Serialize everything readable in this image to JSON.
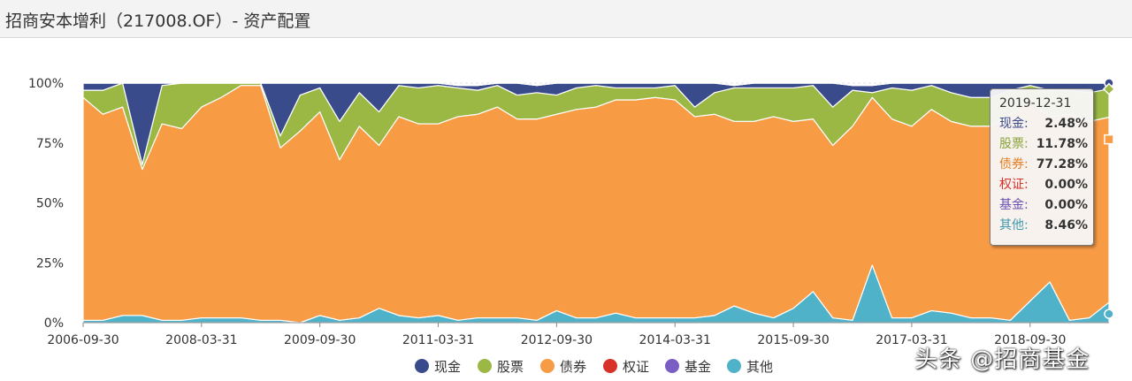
{
  "page": {
    "title": "招商安本增利（217008.OF）- 资产配置",
    "watermark": "头条 @招商基金"
  },
  "colors": {
    "现金": "#3a4b8c",
    "股票": "#9bb845",
    "债券": "#f79b45",
    "权证": "#d8312a",
    "基金": "#7b5ec3",
    "其他": "#4fb2c8"
  },
  "tooltip": {
    "date": "2019-12-31",
    "rows": [
      {
        "label": "现金:",
        "value": "2.48%"
      },
      {
        "label": "股票:",
        "value": "11.78%"
      },
      {
        "label": "债券:",
        "value": "77.28%"
      },
      {
        "label": "权证:",
        "value": "0.00%"
      },
      {
        "label": "基金:",
        "value": "0.00%"
      },
      {
        "label": "其他:",
        "value": "8.46%"
      }
    ]
  },
  "chart_data": {
    "type": "area",
    "stacked": true,
    "title": "招商安本增利（217008.OF）- 资产配置",
    "ylim": [
      0,
      100
    ],
    "yticks": [
      "0%",
      "25%",
      "50%",
      "75%",
      "100%"
    ],
    "xtick_labels": [
      "2006-09-30",
      "2008-03-31",
      "2009-09-30",
      "2011-03-31",
      "2012-09-30",
      "2014-03-31",
      "2015-09-30",
      "2017-03-31",
      "2018-09-30"
    ],
    "xtick_positions": [
      0,
      6,
      12,
      18,
      24,
      30,
      36,
      42,
      48
    ],
    "legend": [
      "现金",
      "股票",
      "债券",
      "权证",
      "基金",
      "其他"
    ],
    "legend_position": "bottom",
    "series": [
      {
        "name": "其他",
        "values": [
          1,
          1,
          3,
          3,
          1,
          1,
          2,
          2,
          2,
          1,
          1,
          0,
          3,
          1,
          2,
          6,
          3,
          2,
          3,
          1,
          2,
          2,
          2,
          1,
          5,
          2,
          2,
          4,
          2,
          2,
          2,
          2,
          3,
          7,
          4,
          2,
          6,
          13,
          2,
          1,
          24,
          2,
          2,
          5,
          4,
          2,
          2,
          1,
          9,
          17,
          1,
          2,
          8.46
        ]
      },
      {
        "name": "债券",
        "values": [
          93,
          86,
          87,
          61,
          82,
          80,
          88,
          92,
          97,
          98,
          72,
          80,
          85,
          67,
          80,
          68,
          83,
          81,
          80,
          85,
          85,
          88,
          83,
          84,
          82,
          87,
          88,
          89,
          91,
          92,
          91,
          84,
          84,
          77,
          80,
          84,
          78,
          72,
          72,
          81,
          70,
          83,
          80,
          84,
          80,
          80,
          80,
          86,
          83,
          69,
          86,
          82,
          77.28
        ]
      },
      {
        "name": "股票",
        "values": [
          3,
          10,
          10,
          2,
          16,
          19,
          10,
          6,
          1,
          1,
          5,
          15,
          10,
          16,
          14,
          14,
          13,
          15,
          16,
          12,
          10,
          9,
          10,
          11,
          8,
          9,
          9,
          5,
          5,
          4,
          6,
          4,
          9,
          14,
          14,
          12,
          14,
          14,
          16,
          15,
          2,
          13,
          15,
          10,
          12,
          12,
          12,
          10,
          7,
          11,
          10,
          12,
          11.78
        ]
      },
      {
        "name": "现金",
        "values": [
          3,
          3,
          0,
          34,
          1,
          0,
          0,
          0,
          0,
          0,
          22,
          5,
          2,
          16,
          4,
          12,
          1,
          2,
          1,
          1,
          2,
          1,
          5,
          3,
          5,
          2,
          1,
          2,
          2,
          2,
          1,
          10,
          4,
          1,
          2,
          2,
          2,
          1,
          10,
          2,
          3,
          2,
          3,
          1,
          4,
          6,
          6,
          3,
          1,
          3,
          3,
          4,
          2.48
        ]
      },
      {
        "name": "权证",
        "values": [
          0,
          0,
          0,
          0,
          0,
          0,
          0,
          0,
          0,
          0,
          0,
          0,
          0,
          0,
          0,
          0,
          0,
          0,
          0,
          0,
          0,
          0,
          0,
          0,
          0,
          0,
          0,
          0,
          0,
          0,
          0,
          0,
          0,
          0,
          0,
          0,
          0,
          0,
          0,
          0,
          0,
          0,
          0,
          0,
          0,
          0,
          0,
          0,
          0,
          0,
          0,
          0,
          0
        ]
      },
      {
        "name": "基金",
        "values": [
          0,
          0,
          0,
          0,
          0,
          0,
          0,
          0,
          0,
          0,
          0,
          0,
          0,
          0,
          0,
          0,
          0,
          0,
          0,
          0,
          0,
          0,
          0,
          0,
          0,
          0,
          0,
          0,
          0,
          0,
          0,
          0,
          0,
          0,
          0,
          0,
          0,
          0,
          0,
          0,
          0,
          0,
          0,
          0,
          0,
          0,
          0,
          0,
          0,
          0,
          0,
          0,
          0
        ]
      }
    ]
  }
}
